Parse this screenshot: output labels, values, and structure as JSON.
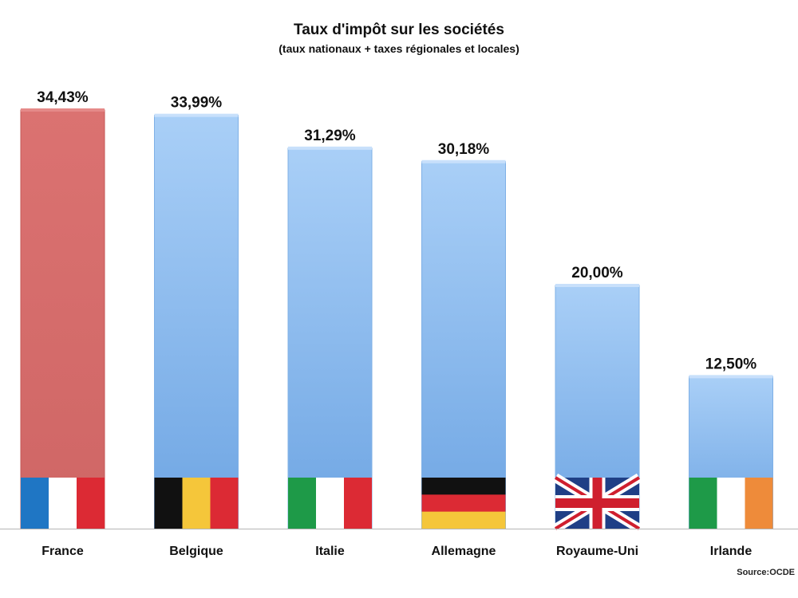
{
  "chart_data": {
    "type": "bar",
    "title": "Taux d'impôt sur les sociétés",
    "subtitle": "(taux nationaux + taxes régionales et locales)",
    "xlabel": "",
    "ylabel": "",
    "ylim": [
      0,
      40
    ],
    "grid": false,
    "categories": [
      "France",
      "Belgique",
      "Italie",
      "Allemagne",
      "Royaume-Uni",
      "Irlande"
    ],
    "values": [
      34.43,
      33.99,
      31.29,
      30.18,
      20.0,
      12.5
    ],
    "value_labels": [
      "34,43%",
      "33,99%",
      "31,29%",
      "30,18%",
      "20,00%",
      "12,50%"
    ],
    "highlight_color": "#d96c6b",
    "bar_color": "#8fbdf0",
    "flags": [
      "france-flag-icon",
      "belgium-flag-icon",
      "italy-flag-icon",
      "germany-flag-icon",
      "uk-flag-icon",
      "ireland-flag-icon"
    ],
    "source": "Source:OCDE"
  }
}
